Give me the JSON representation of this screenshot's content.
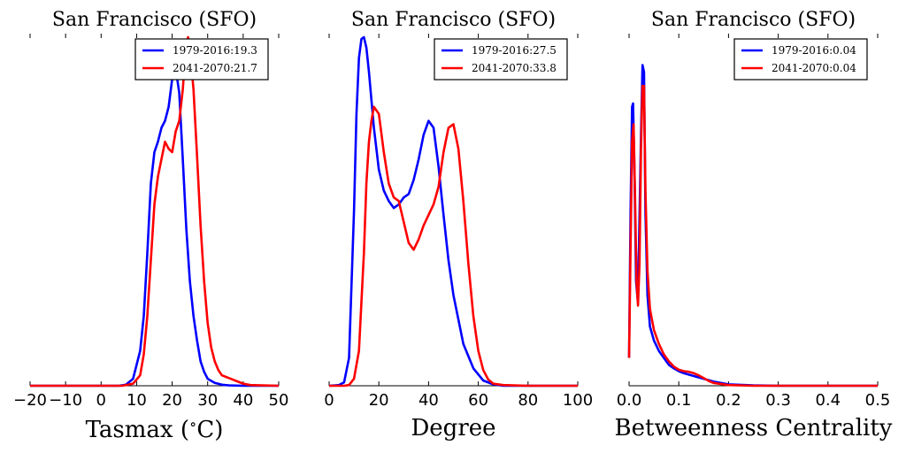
{
  "chart_data": [
    {
      "type": "line",
      "title": "San Francisco (SFO)",
      "xlabel": "Tasmax ($^\\circ$C)",
      "ylabel": "",
      "xlim": [
        -20,
        50
      ],
      "ylim": [
        0,
        1.0
      ],
      "xticks": [
        -20,
        -10,
        0,
        10,
        20,
        30,
        40,
        50
      ],
      "xtick_labels": [
        "−20",
        "−10",
        "0",
        "10",
        "20",
        "30",
        "40",
        "50"
      ],
      "legend_position": "top-right",
      "series": [
        {
          "name": "1979-2016:19.3",
          "color": "#0000ff",
          "x": [
            -20,
            5,
            7,
            9,
            11,
            12,
            13,
            14,
            15,
            16,
            17,
            18,
            19,
            20,
            21,
            22,
            23,
            24,
            25,
            26,
            27,
            28,
            29,
            30,
            32,
            34,
            36,
            40,
            50
          ],
          "y": [
            0,
            0,
            0.003,
            0.02,
            0.1,
            0.2,
            0.38,
            0.58,
            0.67,
            0.7,
            0.74,
            0.76,
            0.8,
            0.88,
            0.91,
            0.84,
            0.65,
            0.45,
            0.3,
            0.2,
            0.13,
            0.07,
            0.04,
            0.02,
            0.008,
            0.003,
            0.001,
            0,
            0
          ]
        },
        {
          "name": "2041-2070:21.7",
          "color": "#ff0000",
          "x": [
            -20,
            6,
            9,
            11,
            12,
            13,
            14,
            15,
            16,
            17,
            18,
            19,
            20,
            21,
            22,
            23,
            23.5,
            24,
            24.5,
            25,
            26,
            27,
            28,
            29,
            30,
            31,
            32,
            33,
            34,
            36,
            38,
            40,
            42,
            50
          ],
          "y": [
            0,
            0,
            0.006,
            0.03,
            0.09,
            0.2,
            0.36,
            0.52,
            0.6,
            0.65,
            0.7,
            0.68,
            0.67,
            0.73,
            0.76,
            0.85,
            0.92,
            0.98,
            1.0,
            0.97,
            0.85,
            0.66,
            0.46,
            0.3,
            0.18,
            0.11,
            0.07,
            0.045,
            0.03,
            0.022,
            0.014,
            0.006,
            0.002,
            0
          ]
        }
      ]
    },
    {
      "type": "line",
      "title": "San Francisco (SFO)",
      "xlabel": "Degree",
      "ylabel": "",
      "xlim": [
        0,
        100
      ],
      "ylim": [
        0,
        1.0
      ],
      "xticks": [
        0,
        20,
        40,
        60,
        80,
        100
      ],
      "xtick_labels": [
        "0",
        "20",
        "40",
        "60",
        "80",
        "100"
      ],
      "legend_position": "top-right",
      "series": [
        {
          "name": "1979-2016:27.5",
          "color": "#0000ff",
          "x": [
            0,
            4,
            6,
            8,
            10,
            11,
            12,
            13,
            14,
            15,
            16,
            17,
            18,
            20,
            22,
            24,
            26,
            28,
            30,
            32,
            34,
            36,
            38,
            40,
            42,
            44,
            46,
            48,
            50,
            54,
            58,
            62,
            66,
            70,
            80,
            100
          ],
          "y": [
            0,
            0.002,
            0.01,
            0.08,
            0.5,
            0.78,
            0.94,
            0.995,
            1.0,
            0.97,
            0.9,
            0.82,
            0.74,
            0.62,
            0.56,
            0.53,
            0.51,
            0.52,
            0.54,
            0.55,
            0.59,
            0.65,
            0.72,
            0.76,
            0.74,
            0.63,
            0.49,
            0.36,
            0.26,
            0.12,
            0.05,
            0.015,
            0.004,
            0,
            0,
            0
          ]
        },
        {
          "name": "2041-2070:33.8",
          "color": "#ff0000",
          "x": [
            0,
            6,
            8,
            10,
            12,
            14,
            15,
            16,
            17,
            18,
            20,
            22,
            24,
            26,
            28,
            30,
            32,
            34,
            36,
            38,
            40,
            42,
            44,
            46,
            48,
            50,
            52,
            54,
            56,
            58,
            60,
            62,
            64,
            66,
            70,
            80,
            100
          ],
          "y": [
            0,
            0,
            0.002,
            0.02,
            0.1,
            0.38,
            0.58,
            0.7,
            0.76,
            0.8,
            0.78,
            0.67,
            0.58,
            0.54,
            0.53,
            0.47,
            0.41,
            0.39,
            0.42,
            0.46,
            0.49,
            0.52,
            0.57,
            0.67,
            0.74,
            0.75,
            0.68,
            0.53,
            0.35,
            0.2,
            0.1,
            0.045,
            0.018,
            0.006,
            0.002,
            0,
            0
          ]
        }
      ]
    },
    {
      "type": "line",
      "title": "San Francisco (SFO)",
      "xlabel": "Betweenness Centrality",
      "ylabel": "",
      "xlim": [
        0.0,
        0.5
      ],
      "ylim": [
        0,
        1.0
      ],
      "xticks": [
        0.0,
        0.1,
        0.2,
        0.3,
        0.4,
        0.5
      ],
      "xtick_labels": [
        "0.0",
        "0.1",
        "0.2",
        "0.3",
        "0.4",
        "0.5"
      ],
      "legend_position": "top-right",
      "series": [
        {
          "name": "1979-2016:0.04",
          "color": "#0000ff",
          "x": [
            0.0,
            0.003,
            0.006,
            0.008,
            0.011,
            0.014,
            0.017,
            0.02,
            0.024,
            0.027,
            0.03,
            0.033,
            0.037,
            0.042,
            0.05,
            0.06,
            0.07,
            0.08,
            0.09,
            0.1,
            0.11,
            0.12,
            0.13,
            0.15,
            0.17,
            0.2,
            0.25,
            0.3,
            0.5
          ],
          "y": [
            0.08,
            0.5,
            0.8,
            0.81,
            0.6,
            0.3,
            0.25,
            0.4,
            0.72,
            0.92,
            0.9,
            0.5,
            0.26,
            0.17,
            0.13,
            0.1,
            0.08,
            0.06,
            0.05,
            0.042,
            0.036,
            0.032,
            0.028,
            0.02,
            0.012,
            0.004,
            0.001,
            0,
            0
          ]
        },
        {
          "name": "2041-2070:0.04",
          "color": "#ff0000",
          "x": [
            0.0,
            0.003,
            0.006,
            0.009,
            0.012,
            0.015,
            0.018,
            0.021,
            0.024,
            0.027,
            0.03,
            0.033,
            0.037,
            0.042,
            0.05,
            0.06,
            0.07,
            0.08,
            0.09,
            0.1,
            0.11,
            0.12,
            0.13,
            0.14,
            0.15,
            0.16,
            0.17,
            0.2,
            0.25,
            0.5
          ],
          "y": [
            0.08,
            0.4,
            0.7,
            0.75,
            0.55,
            0.3,
            0.23,
            0.35,
            0.68,
            0.86,
            0.86,
            0.56,
            0.33,
            0.22,
            0.16,
            0.12,
            0.09,
            0.07,
            0.055,
            0.046,
            0.042,
            0.04,
            0.036,
            0.03,
            0.022,
            0.014,
            0.008,
            0.002,
            0,
            0
          ]
        }
      ]
    }
  ]
}
